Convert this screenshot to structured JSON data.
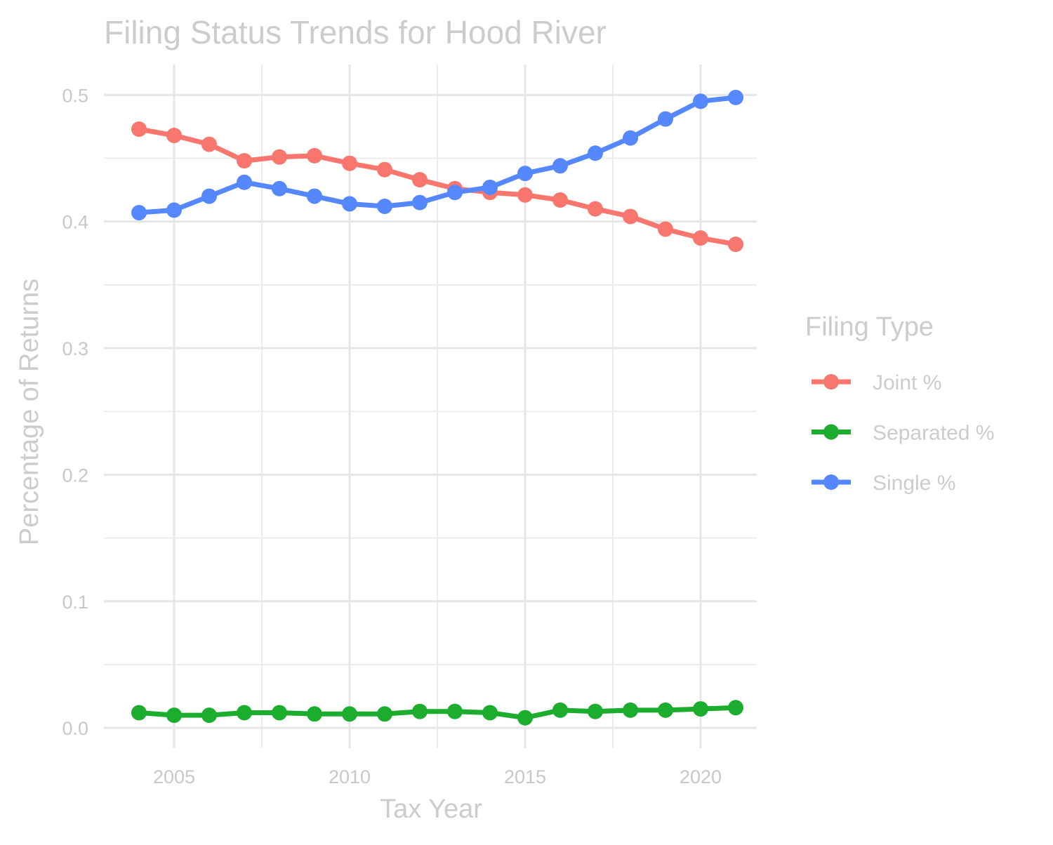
{
  "chart_data": {
    "type": "line",
    "title": "Filing Status Trends for Hood River",
    "xlabel": "Tax Year",
    "ylabel": "Percentage of Returns",
    "xlim": [
      2003.0,
      2021.6
    ],
    "ylim": [
      -0.016,
      0.524
    ],
    "x_ticks": [
      2005,
      2010,
      2015,
      2020
    ],
    "x_minor_ticks": [
      2007.5,
      2012.5,
      2017.5
    ],
    "y_ticks": [
      0.0,
      0.1,
      0.2,
      0.3,
      0.4,
      0.5
    ],
    "y_tick_labels": [
      "0.0",
      "0.1",
      "0.2",
      "0.3",
      "0.4",
      "0.5"
    ],
    "y_minor_ticks": [
      0.05,
      0.15,
      0.25,
      0.35,
      0.45
    ],
    "grid": true,
    "legend": {
      "title": "Filing Type",
      "position": "right"
    },
    "x": [
      2004,
      2005,
      2006,
      2007,
      2008,
      2009,
      2010,
      2011,
      2012,
      2013,
      2014,
      2015,
      2016,
      2017,
      2018,
      2019,
      2020,
      2021
    ],
    "series": [
      {
        "name": "Joint %",
        "color": "#F8766D",
        "values": [
          0.473,
          0.468,
          0.461,
          0.448,
          0.451,
          0.452,
          0.446,
          0.441,
          0.433,
          0.426,
          0.423,
          0.421,
          0.417,
          0.41,
          0.404,
          0.394,
          0.387,
          0.382
        ]
      },
      {
        "name": "Separated %",
        "color": "#1DAD2E",
        "values": [
          0.012,
          0.01,
          0.01,
          0.012,
          0.012,
          0.011,
          0.011,
          0.011,
          0.013,
          0.013,
          0.012,
          0.008,
          0.014,
          0.013,
          0.014,
          0.014,
          0.015,
          0.016
        ]
      },
      {
        "name": "Single %",
        "color": "#5588FF",
        "values": [
          0.407,
          0.409,
          0.42,
          0.431,
          0.426,
          0.42,
          0.414,
          0.412,
          0.415,
          0.423,
          0.427,
          0.438,
          0.444,
          0.454,
          0.466,
          0.481,
          0.495,
          0.498
        ]
      }
    ]
  }
}
